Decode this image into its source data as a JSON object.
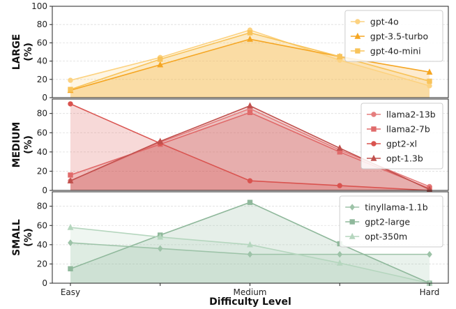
{
  "chart_data": {
    "type": "area",
    "x_categories": [
      "Easy",
      "",
      "Medium",
      "",
      "Hard"
    ],
    "xlabel": "Difficulty Level",
    "panels": [
      {
        "ylabel": [
          "LARGE",
          "(%)"
        ],
        "ylim": [
          0,
          100
        ],
        "yticks": [
          0,
          20,
          40,
          60,
          80,
          100
        ],
        "grid": true,
        "legend_position": "top-right",
        "series": [
          {
            "name": "gpt-4o",
            "marker": "circle",
            "color": "#FCD280",
            "values": [
              19,
              44,
              74,
              41,
              13
            ]
          },
          {
            "name": "gpt-3.5-turbo",
            "marker": "triangle",
            "color": "#F5A623",
            "values": [
              8,
              36,
              64,
              45,
              28
            ]
          },
          {
            "name": "gpt-4o-mini",
            "marker": "square",
            "color": "#F8C35A",
            "values": [
              9,
              42,
              71,
              45,
              18
            ]
          }
        ]
      },
      {
        "ylabel": [
          "MEDIUM",
          "(%)"
        ],
        "ylim": [
          0,
          95
        ],
        "yticks": [
          0,
          20,
          40,
          60,
          80
        ],
        "grid": true,
        "legend_position": "top-right",
        "series": [
          {
            "name": "llama2-13b",
            "marker": "circle",
            "color": "#E57E7E",
            "values": [
              10,
              50,
              85,
              42,
              4
            ]
          },
          {
            "name": "llama2-7b",
            "marker": "square",
            "color": "#E06A6A",
            "values": [
              16,
              48,
              81,
              40,
              2
            ]
          },
          {
            "name": "gpt2-xl",
            "marker": "circle",
            "color": "#D9534F",
            "values": [
              90,
              49,
              10,
              5,
              0
            ]
          },
          {
            "name": "opt-1.3b",
            "marker": "triangle",
            "color": "#C0504D",
            "values": [
              10,
              51,
              88,
              44,
              1
            ]
          }
        ]
      },
      {
        "ylabel": [
          "SMALL",
          "(%)"
        ],
        "ylim": [
          0,
          95
        ],
        "yticks": [
          0,
          20,
          40,
          60,
          80
        ],
        "grid": true,
        "legend_position": "top-right",
        "series": [
          {
            "name": "tinyllama-1.1b",
            "marker": "diamond",
            "color": "#9DC3A8",
            "values": [
              42,
              36,
              30,
              30,
              30
            ]
          },
          {
            "name": "gpt2-large",
            "marker": "square",
            "color": "#8FB89B",
            "values": [
              15,
              50,
              84,
              41,
              0
            ]
          },
          {
            "name": "opt-350m",
            "marker": "triangle",
            "color": "#B5D6BE",
            "values": [
              58,
              48,
              40,
              21,
              0
            ]
          }
        ]
      }
    ]
  }
}
